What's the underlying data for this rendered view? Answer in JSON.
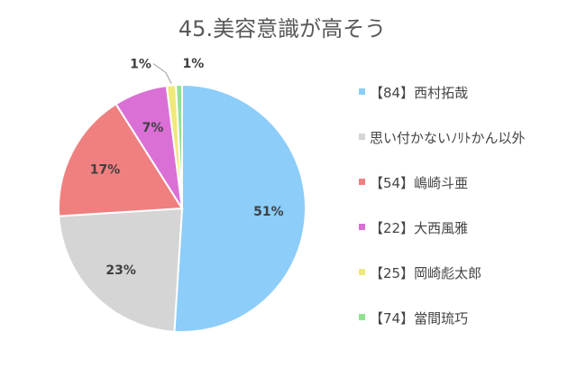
{
  "chart_data": {
    "type": "pie",
    "title": "45.美容意識が高そう",
    "legend_position": "right",
    "series": [
      {
        "name": "【84】西村拓哉",
        "value": 51,
        "label": "51%",
        "color": "#8ccdf9"
      },
      {
        "name": "思い付かないﾉﾘﾄかん以外",
        "value": 23,
        "label": "23%",
        "color": "#d5d5d5"
      },
      {
        "name": "【54】嶋崎斗亜",
        "value": 17,
        "label": "17%",
        "color": "#f08080"
      },
      {
        "name": "【22】大西風雅",
        "value": 7,
        "label": "7%",
        "color": "#da70d6"
      },
      {
        "name": "【25】岡崎彪太郎",
        "value": 1.2,
        "label": "1%",
        "color": "#f0e97a"
      },
      {
        "name": "【74】當間琉巧",
        "value": 0.8,
        "label": "1%",
        "color": "#8fe38f"
      }
    ]
  }
}
